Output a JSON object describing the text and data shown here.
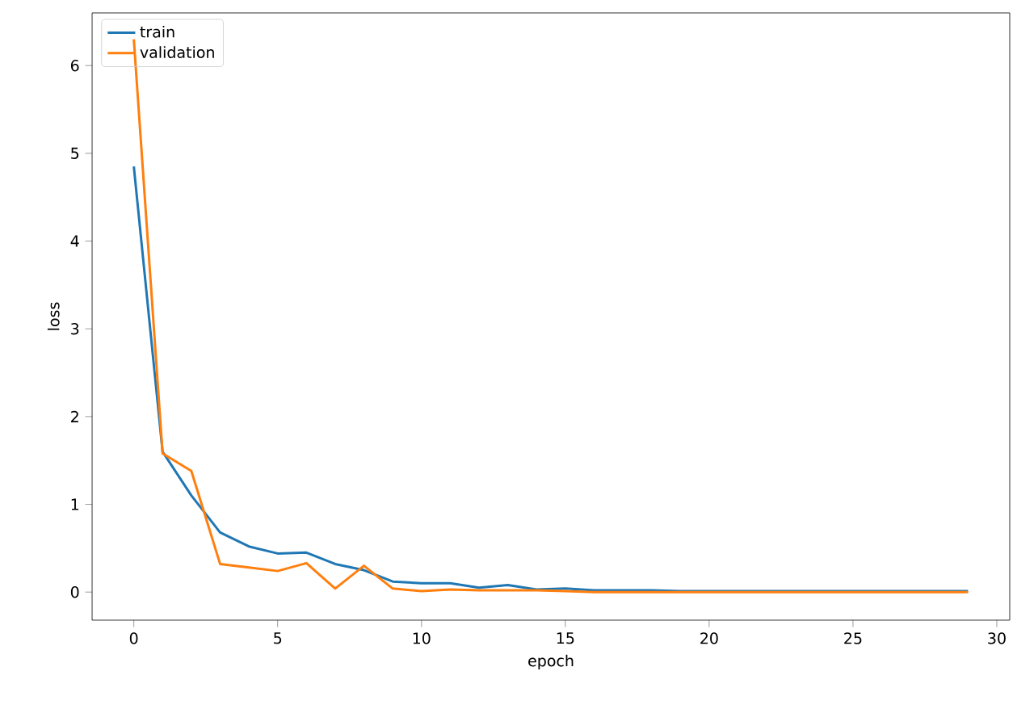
{
  "chart_data": {
    "type": "line",
    "xlabel": "epoch",
    "ylabel": "loss",
    "x": [
      0,
      1,
      2,
      3,
      4,
      5,
      6,
      7,
      8,
      9,
      10,
      11,
      12,
      13,
      14,
      15,
      16,
      17,
      18,
      19,
      20,
      21,
      22,
      23,
      24,
      25,
      26,
      27,
      28,
      29
    ],
    "series": [
      {
        "name": "train",
        "color": "#1f77b4",
        "values": [
          4.85,
          1.6,
          1.1,
          0.68,
          0.52,
          0.44,
          0.45,
          0.32,
          0.25,
          0.12,
          0.1,
          0.1,
          0.05,
          0.08,
          0.03,
          0.04,
          0.02,
          0.02,
          0.02,
          0.01,
          0.01,
          0.01,
          0.01,
          0.01,
          0.01,
          0.01,
          0.01,
          0.01,
          0.01,
          0.01
        ]
      },
      {
        "name": "validation",
        "color": "#ff7f0e",
        "values": [
          6.3,
          1.58,
          1.38,
          0.32,
          0.28,
          0.24,
          0.33,
          0.04,
          0.3,
          0.04,
          0.01,
          0.03,
          0.02,
          0.02,
          0.02,
          0.01,
          0.0,
          0.0,
          0.0,
          0.0,
          0.0,
          0.0,
          0.0,
          0.0,
          0.0,
          0.0,
          0.0,
          0.0,
          0.0,
          0.0
        ]
      }
    ],
    "xlim": [
      -1.45,
      30.45
    ],
    "ylim": [
      -0.32,
      6.6
    ],
    "xticks": [
      0,
      5,
      10,
      15,
      20,
      25,
      30
    ],
    "yticks": [
      0,
      1,
      2,
      3,
      4,
      5,
      6
    ],
    "legend": "top left",
    "grid": false,
    "marker": "none",
    "line_style": "solid"
  }
}
